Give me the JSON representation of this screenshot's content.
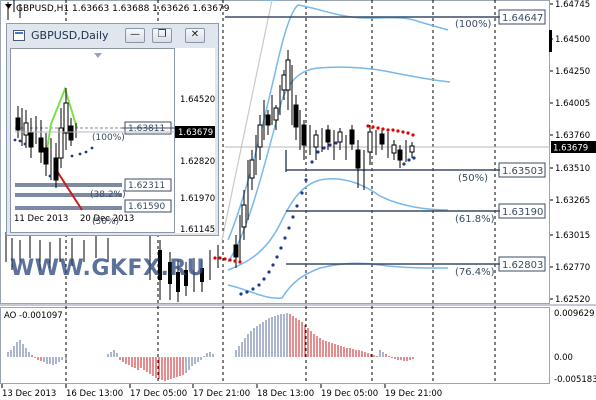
{
  "main_chart": {
    "title": "GBPUSD,H1  1.63663 1.63688 1.63626 1.63679",
    "current_price": "1.63679",
    "price_ticks": [
      "1.64745",
      "1.64500",
      "1.64250",
      "1.64005",
      "1.63760",
      "1.63510",
      "1.63265",
      "1.63015",
      "1.62770",
      "1.62520"
    ],
    "fib_levels": [
      {
        "pct": "(100%)",
        "price": "1.64647"
      },
      {
        "pct": "(50%)",
        "price": "1.63503"
      },
      {
        "pct": "(61.8%)",
        "price": "1.63190"
      },
      {
        "pct": "(76.4%)",
        "price": "1.62803"
      }
    ],
    "time_labels": [
      "13 Dec 2013",
      "16 Dec 13:00",
      "17 Dec 05:00",
      "17 Dec 21:00",
      "18 Dec 13:00",
      "19 Dec 05:00",
      "19 Dec 21:00"
    ],
    "watermark": "WWW.GKFX.RU"
  },
  "indicator": {
    "label": "AO -0.001097",
    "ticks": [
      "0.009629",
      "0.00",
      "-0.005183"
    ]
  },
  "mini_window": {
    "title": "GBPUSD,Daily",
    "buttons": {
      "minimize": "—",
      "restore": "❐",
      "close": "✕"
    },
    "price_ticks": [
      "1.64520",
      "1.63679",
      "1.62820",
      "1.61970",
      "1.61145"
    ],
    "fib_levels": [
      {
        "pct": "(100%)",
        "price": "1.63811"
      },
      {
        "pct": "(38.2%)",
        "price": "1.62311"
      },
      {
        "pct": "(50%)",
        "price": "1.61590"
      }
    ],
    "time_labels": [
      "11 Dec 2013",
      "20 Dec 2013"
    ]
  },
  "colors": {
    "bollinger": "#79b9ea",
    "parabolic_up": "#1e3a8a",
    "parabolic_down": "#e00000",
    "ao_up": "#5a6e9e",
    "ao_down": "#cc1a1a",
    "fib_line": "#3b4b66",
    "current_price_box": "#000000"
  }
}
